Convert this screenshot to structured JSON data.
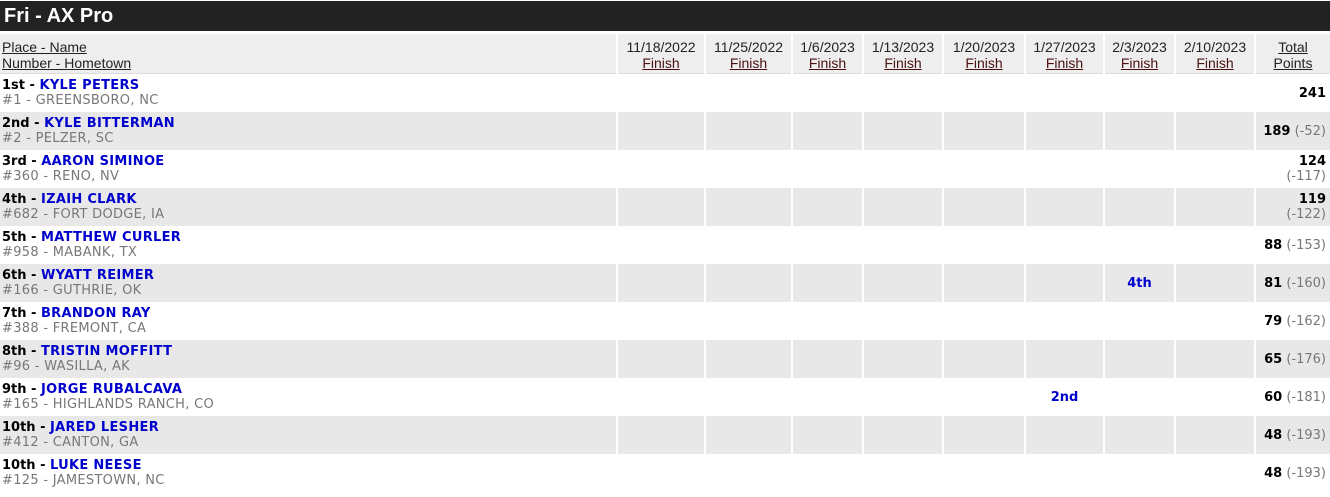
{
  "title": "Fri - AX Pro",
  "header": {
    "place_name": "Place - Name",
    "number_hometown": "Number - Hometown",
    "finish": "Finish",
    "total": "Total Points",
    "dates": [
      "11/18/2022",
      "11/25/2022",
      "1/6/2023",
      "1/13/2023",
      "1/20/2023",
      "1/27/2023",
      "2/3/2023",
      "2/10/2023"
    ]
  },
  "rows": [
    {
      "place": "1st",
      "name": "KYLE PETERS",
      "number": "#1",
      "hometown": "GREENSBORO, NC",
      "finishes": [
        "",
        "",
        "",
        "",
        "",
        "",
        "",
        ""
      ],
      "total": "241",
      "diff": ""
    },
    {
      "place": "2nd",
      "name": "KYLE BITTERMAN",
      "number": "#2",
      "hometown": "PELZER, SC",
      "finishes": [
        "",
        "",
        "",
        "",
        "",
        "",
        "",
        ""
      ],
      "total": "189",
      "diff": "(-52)"
    },
    {
      "place": "3rd",
      "name": "AARON SIMINOE",
      "number": "#360",
      "hometown": "RENO, NV",
      "finishes": [
        "",
        "",
        "",
        "",
        "",
        "",
        "",
        ""
      ],
      "total": "124",
      "diff": "(-117)"
    },
    {
      "place": "4th",
      "name": "IZAIH CLARK",
      "number": "#682",
      "hometown": "FORT DODGE, IA",
      "finishes": [
        "",
        "",
        "",
        "",
        "",
        "",
        "",
        ""
      ],
      "total": "119",
      "diff": "(-122)"
    },
    {
      "place": "5th",
      "name": "MATTHEW CURLER",
      "number": "#958",
      "hometown": "MABANK, TX",
      "finishes": [
        "",
        "",
        "",
        "",
        "",
        "",
        "",
        ""
      ],
      "total": "88",
      "diff": "(-153)"
    },
    {
      "place": "6th",
      "name": "WYATT REIMER",
      "number": "#166",
      "hometown": "GUTHRIE, OK",
      "finishes": [
        "",
        "",
        "",
        "",
        "",
        "",
        "4th",
        ""
      ],
      "total": "81",
      "diff": "(-160)"
    },
    {
      "place": "7th",
      "name": "BRANDON RAY",
      "number": "#388",
      "hometown": "FREMONT, CA",
      "finishes": [
        "",
        "",
        "",
        "",
        "",
        "",
        "",
        ""
      ],
      "total": "79",
      "diff": "(-162)"
    },
    {
      "place": "8th",
      "name": "TRISTIN MOFFITT",
      "number": "#96",
      "hometown": "WASILLA, AK",
      "finishes": [
        "",
        "",
        "",
        "",
        "",
        "",
        "",
        ""
      ],
      "total": "65",
      "diff": "(-176)"
    },
    {
      "place": "9th",
      "name": "JORGE RUBALCAVA",
      "number": "#165",
      "hometown": "HIGHLANDS RANCH, CO",
      "finishes": [
        "",
        "",
        "",
        "",
        "",
        "2nd",
        "",
        ""
      ],
      "total": "60",
      "diff": "(-181)"
    },
    {
      "place": "10th",
      "name": "JARED LESHER",
      "number": "#412",
      "hometown": "CANTON, GA",
      "finishes": [
        "",
        "",
        "",
        "",
        "",
        "",
        "",
        ""
      ],
      "total": "48",
      "diff": "(-193)"
    },
    {
      "place": "10th",
      "name": "LUKE NEESE",
      "number": "#125",
      "hometown": "JAMESTOWN, NC",
      "finishes": [
        "",
        "",
        "",
        "",
        "",
        "",
        "",
        ""
      ],
      "total": "48",
      "diff": "(-193)"
    }
  ]
}
